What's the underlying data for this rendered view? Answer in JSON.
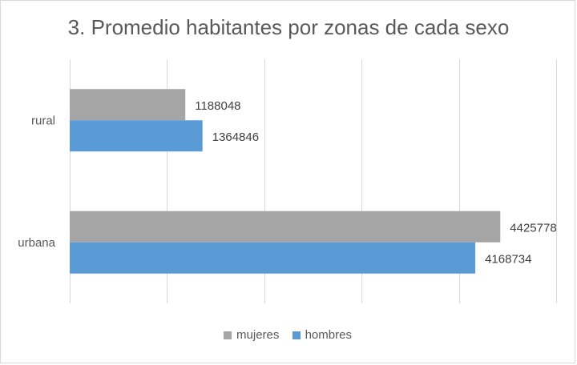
{
  "chart_data": {
    "type": "bar",
    "orientation": "horizontal",
    "title": "3. Promedio habitantes por zonas de cada sexo",
    "xlabel": "",
    "ylabel": "",
    "categories": [
      "rural",
      "urbana"
    ],
    "series": [
      {
        "name": "mujeres",
        "values": [
          1188048,
          4425778
        ],
        "color": "#A5A5A5"
      },
      {
        "name": "hombres",
        "values": [
          1364846,
          4168734
        ],
        "color": "#5B9BD5"
      }
    ],
    "xlim": [
      0,
      5000000
    ],
    "grid": true,
    "legend_position": "bottom",
    "data_labels": true
  }
}
